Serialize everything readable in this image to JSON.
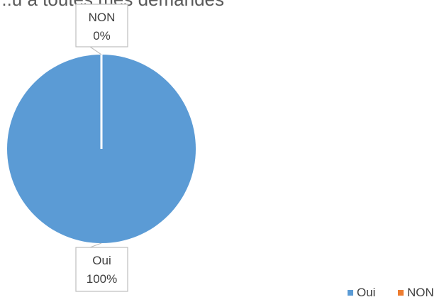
{
  "chart_data": {
    "type": "pie",
    "title": "...u à toutes mes demandes",
    "categories": [
      "Oui",
      "NON"
    ],
    "values": [
      100,
      0
    ],
    "data_labels": [
      {
        "category": "Oui",
        "percent": "100%"
      },
      {
        "category": "NON",
        "percent": "0%"
      }
    ],
    "colors": [
      "#5B9BD5",
      "#ED7D31"
    ],
    "legend": {
      "position": "bottom-right",
      "entries": [
        "Oui",
        "NON"
      ]
    }
  }
}
